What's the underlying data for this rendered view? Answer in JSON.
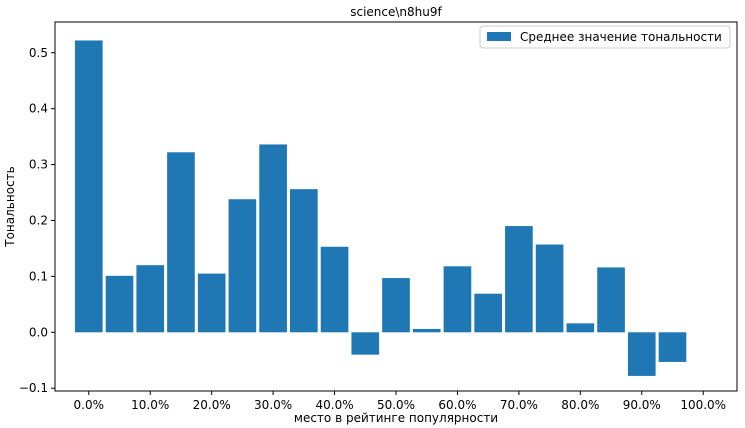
{
  "chart_data": {
    "type": "bar",
    "title": "science\\n8hu9f",
    "xlabel": "место в рейтинге популярности",
    "ylabel": "Тональность",
    "legend": {
      "label": "Среднее значение тональности",
      "placement": "upper-right"
    },
    "bar_color": "#1f77b4",
    "grid": false,
    "x": [
      0,
      5,
      10,
      15,
      20,
      25,
      30,
      35,
      40,
      45,
      50,
      55,
      60,
      65,
      70,
      75,
      80,
      85,
      90,
      95,
      100
    ],
    "values": [
      0.522,
      0.101,
      0.12,
      0.322,
      0.105,
      0.238,
      0.336,
      0.256,
      0.153,
      -0.04,
      0.097,
      0.006,
      0.118,
      0.069,
      0.19,
      0.157,
      0.016,
      0.116,
      -0.078,
      -0.053,
      0.0
    ],
    "xlim": [
      -5.5,
      105.5
    ],
    "ylim": [
      -0.105,
      0.555
    ],
    "xticks": [
      0,
      10,
      20,
      30,
      40,
      50,
      60,
      70,
      80,
      90,
      100
    ],
    "xtick_labels": [
      "0.0%",
      "10.0%",
      "20.0%",
      "30.0%",
      "40.0%",
      "50.0%",
      "60.0%",
      "70.0%",
      "80.0%",
      "90.0%",
      "100.0%"
    ],
    "yticks": [
      -0.1,
      0.0,
      0.1,
      0.2,
      0.3,
      0.4,
      0.5
    ],
    "ytick_labels": [
      "−0.1",
      "0.0",
      "0.1",
      "0.2",
      "0.3",
      "0.4",
      "0.5"
    ],
    "bar_width": 4.5
  }
}
